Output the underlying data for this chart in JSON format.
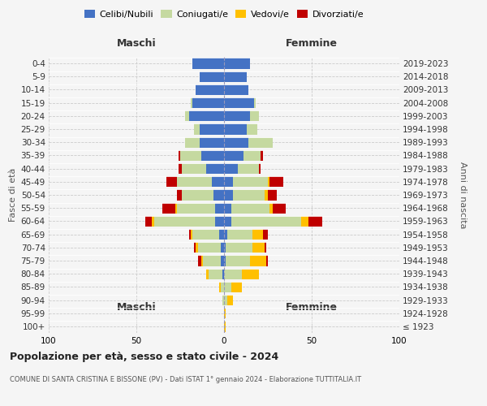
{
  "age_groups": [
    "100+",
    "95-99",
    "90-94",
    "85-89",
    "80-84",
    "75-79",
    "70-74",
    "65-69",
    "60-64",
    "55-59",
    "50-54",
    "45-49",
    "40-44",
    "35-39",
    "30-34",
    "25-29",
    "20-24",
    "15-19",
    "10-14",
    "5-9",
    "0-4"
  ],
  "birth_years": [
    "≤ 1923",
    "1924-1928",
    "1929-1933",
    "1934-1938",
    "1939-1943",
    "1944-1948",
    "1949-1953",
    "1954-1958",
    "1959-1963",
    "1964-1968",
    "1969-1973",
    "1974-1978",
    "1979-1983",
    "1984-1988",
    "1989-1993",
    "1994-1998",
    "1999-2003",
    "2004-2008",
    "2009-2013",
    "2014-2018",
    "2019-2023"
  ],
  "colors": {
    "celibi": "#4472c4",
    "coniugati": "#c5d9a0",
    "vedovi": "#ffc000",
    "divorziati": "#c00000"
  },
  "males": {
    "celibi": [
      0,
      0,
      0,
      0,
      1,
      2,
      2,
      3,
      5,
      5,
      6,
      7,
      10,
      13,
      14,
      14,
      20,
      18,
      16,
      14,
      18
    ],
    "coniugati": [
      0,
      0,
      1,
      2,
      8,
      10,
      13,
      15,
      35,
      22,
      18,
      20,
      14,
      12,
      8,
      3,
      2,
      1,
      0,
      0,
      0
    ],
    "vedovi": [
      0,
      0,
      0,
      1,
      1,
      1,
      1,
      1,
      1,
      1,
      0,
      0,
      0,
      0,
      0,
      0,
      0,
      0,
      0,
      0,
      0
    ],
    "divorziati": [
      0,
      0,
      0,
      0,
      0,
      2,
      1,
      1,
      4,
      7,
      3,
      6,
      2,
      1,
      0,
      0,
      0,
      0,
      0,
      0,
      0
    ]
  },
  "females": {
    "celibi": [
      0,
      0,
      0,
      0,
      0,
      1,
      1,
      2,
      4,
      4,
      5,
      5,
      8,
      11,
      14,
      13,
      15,
      17,
      14,
      13,
      15
    ],
    "coniugati": [
      0,
      0,
      2,
      4,
      10,
      14,
      15,
      14,
      40,
      22,
      18,
      20,
      12,
      10,
      14,
      6,
      5,
      1,
      0,
      0,
      0
    ],
    "vedovi": [
      1,
      1,
      3,
      6,
      10,
      9,
      7,
      6,
      4,
      2,
      2,
      1,
      0,
      0,
      0,
      0,
      0,
      0,
      0,
      0,
      0
    ],
    "divorziati": [
      0,
      0,
      0,
      0,
      0,
      1,
      1,
      3,
      8,
      7,
      5,
      8,
      1,
      1,
      0,
      0,
      0,
      0,
      0,
      0,
      0
    ]
  },
  "xlim": 100,
  "title": "Popolazione per età, sesso e stato civile - 2024",
  "subtitle": "COMUNE DI SANTA CRISTINA E BISSONE (PV) - Dati ISTAT 1° gennaio 2024 - Elaborazione TUTTITALIA.IT",
  "xlabel_left": "Maschi",
  "xlabel_right": "Femmine",
  "ylabel_left": "Fasce di età",
  "ylabel_right": "Anni di nascita",
  "bg_color": "#f5f5f5",
  "plot_bg": "#ffffff",
  "grid_color": "#cccccc",
  "legend_labels": [
    "Celibi/Nubili",
    "Coniugati/e",
    "Vedovi/e",
    "Divorziati/e"
  ]
}
